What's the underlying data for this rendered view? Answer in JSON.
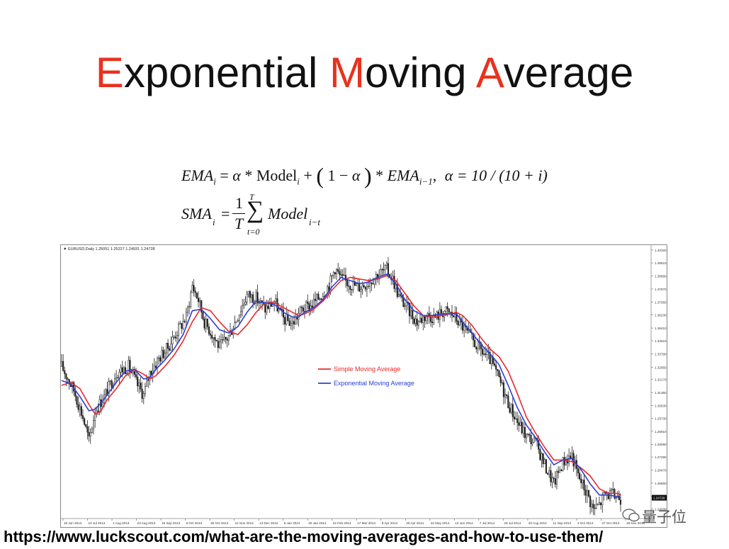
{
  "slide": {
    "title_parts": [
      {
        "text": "E",
        "accent": true
      },
      {
        "text": "xponential ",
        "accent": false
      },
      {
        "text": "M",
        "accent": true
      },
      {
        "text": "oving ",
        "accent": false
      },
      {
        "text": "A",
        "accent": true
      },
      {
        "text": "verage",
        "accent": false
      }
    ],
    "accent_color": "#e8321e",
    "source_url": "https://www.luckscout.com/what-are-the-moving-averages-and-how-to-use-them/",
    "watermark_text": "量子位"
  },
  "formulas": {
    "ema": {
      "lhs": "EMA",
      "lhs_sub": "i",
      "eq": "=",
      "alpha": "α",
      "times": "*",
      "model": "Model",
      "model_sub": "i",
      "plus": "+",
      "one": "1",
      "minus": "−",
      "ema_prev": "EMA",
      "ema_prev_sub": "i−1",
      "comma": ",",
      "alpha_def": "α = 10 / (10 + i)"
    },
    "sma": {
      "lhs": "SMA",
      "lhs_sub": "i",
      "eq": "=",
      "frac_num": "1",
      "frac_den": "T",
      "sum_symbol": "∑",
      "sum_upper": "T",
      "sum_lower": "t=0",
      "model": "Model",
      "model_sub": "i−t"
    }
  },
  "chart_data": {
    "type": "line",
    "instrument_label": "▼ EURUSD,Daily  1.25051 1.25227 1.24931 1.24728",
    "colors": {
      "candles": "#222222",
      "sma": "#e8282b",
      "ema": "#2a3fd6"
    },
    "legend_position": "center",
    "ylim": [
      1.2373,
      1.4032
    ],
    "y_ticks": [
      "1.40320",
      "1.39510",
      "1.38690",
      "1.37870",
      "1.37050",
      "1.36230",
      "1.35410",
      "1.34610",
      "1.33790",
      "1.32950",
      "1.32170",
      "1.31350",
      "1.30530",
      "1.29730",
      "1.28910",
      "1.28090",
      "1.27290",
      "1.26470",
      "1.25650",
      "1.24830",
      "1.24030"
    ],
    "last_price": "1.24728",
    "x_ticks": [
      "18 Jun 2013",
      "10 Jul 2013",
      "1 Aug 2013",
      "23 Aug 2013",
      "16 Sep 2013",
      "8 Oct 2013",
      "30 Oct 2013",
      "21 Nov 2013",
      "13 Dec 2013",
      "8 Jan 2014",
      "30 Jan 2014",
      "24 Feb 2014",
      "17 Mar 2014",
      "8 Apr 2014",
      "30 Apr 2014",
      "22 May 2014",
      "13 Jun 2014",
      "7 Jul 2014",
      "29 Jul 2014",
      "20 Aug 2014",
      "11 Sep 2014",
      "3 Oct 2014",
      "27 Oct 2014",
      "18 Nov 2014"
    ],
    "xlim": [
      0,
      375
    ],
    "price_anchors": [
      [
        0,
        1.33
      ],
      [
        8,
        1.315
      ],
      [
        14,
        1.298
      ],
      [
        18,
        1.283
      ],
      [
        22,
        1.302
      ],
      [
        28,
        1.311
      ],
      [
        36,
        1.326
      ],
      [
        44,
        1.33
      ],
      [
        50,
        1.318
      ],
      [
        54,
        1.312
      ],
      [
        58,
        1.326
      ],
      [
        64,
        1.335
      ],
      [
        70,
        1.342
      ],
      [
        76,
        1.352
      ],
      [
        82,
        1.361
      ],
      [
        86,
        1.381
      ],
      [
        90,
        1.372
      ],
      [
        94,
        1.358
      ],
      [
        98,
        1.352
      ],
      [
        104,
        1.342
      ],
      [
        110,
        1.349
      ],
      [
        116,
        1.362
      ],
      [
        122,
        1.375
      ],
      [
        128,
        1.373
      ],
      [
        134,
        1.366
      ],
      [
        140,
        1.371
      ],
      [
        146,
        1.36
      ],
      [
        152,
        1.357
      ],
      [
        158,
        1.366
      ],
      [
        164,
        1.368
      ],
      [
        170,
        1.374
      ],
      [
        176,
        1.381
      ],
      [
        180,
        1.392
      ],
      [
        184,
        1.385
      ],
      [
        190,
        1.382
      ],
      [
        196,
        1.38
      ],
      [
        202,
        1.383
      ],
      [
        208,
        1.388
      ],
      [
        214,
        1.391
      ],
      [
        218,
        1.385
      ],
      [
        222,
        1.374
      ],
      [
        228,
        1.366
      ],
      [
        234,
        1.358
      ],
      [
        240,
        1.362
      ],
      [
        246,
        1.361
      ],
      [
        252,
        1.365
      ],
      [
        258,
        1.362
      ],
      [
        264,
        1.355
      ],
      [
        270,
        1.347
      ],
      [
        276,
        1.34
      ],
      [
        282,
        1.334
      ],
      [
        288,
        1.322
      ],
      [
        294,
        1.307
      ],
      [
        300,
        1.295
      ],
      [
        306,
        1.286
      ],
      [
        312,
        1.282
      ],
      [
        318,
        1.268
      ],
      [
        324,
        1.256
      ],
      [
        330,
        1.27
      ],
      [
        336,
        1.274
      ],
      [
        340,
        1.261
      ],
      [
        346,
        1.25
      ],
      [
        350,
        1.24
      ],
      [
        354,
        1.243
      ],
      [
        358,
        1.25
      ],
      [
        362,
        1.249
      ],
      [
        366,
        1.248
      ],
      [
        368,
        1.247
      ]
    ],
    "series": [
      {
        "name": "Simple Moving Average",
        "color": "#e8282b",
        "values": [
          [
            0,
            1.318
          ],
          [
            6,
            1.32
          ],
          [
            12,
            1.316
          ],
          [
            18,
            1.306
          ],
          [
            22,
            1.3
          ],
          [
            26,
            1.302
          ],
          [
            30,
            1.309
          ],
          [
            36,
            1.316
          ],
          [
            42,
            1.324
          ],
          [
            48,
            1.328
          ],
          [
            54,
            1.325
          ],
          [
            58,
            1.322
          ],
          [
            62,
            1.324
          ],
          [
            68,
            1.33
          ],
          [
            74,
            1.337
          ],
          [
            80,
            1.346
          ],
          [
            86,
            1.358
          ],
          [
            92,
            1.367
          ],
          [
            98,
            1.365
          ],
          [
            104,
            1.358
          ],
          [
            110,
            1.352
          ],
          [
            116,
            1.35
          ],
          [
            122,
            1.356
          ],
          [
            128,
            1.364
          ],
          [
            134,
            1.37
          ],
          [
            140,
            1.37
          ],
          [
            146,
            1.367
          ],
          [
            152,
            1.364
          ],
          [
            156,
            1.362
          ],
          [
            160,
            1.363
          ],
          [
            166,
            1.366
          ],
          [
            172,
            1.371
          ],
          [
            178,
            1.378
          ],
          [
            184,
            1.384
          ],
          [
            190,
            1.386
          ],
          [
            196,
            1.385
          ],
          [
            202,
            1.384
          ],
          [
            208,
            1.385
          ],
          [
            214,
            1.387
          ],
          [
            220,
            1.384
          ],
          [
            226,
            1.376
          ],
          [
            232,
            1.368
          ],
          [
            238,
            1.362
          ],
          [
            244,
            1.361
          ],
          [
            250,
            1.362
          ],
          [
            256,
            1.363
          ],
          [
            260,
            1.364
          ],
          [
            264,
            1.362
          ],
          [
            270,
            1.356
          ],
          [
            276,
            1.348
          ],
          [
            282,
            1.341
          ],
          [
            288,
            1.336
          ],
          [
            294,
            1.327
          ],
          [
            300,
            1.313
          ],
          [
            306,
            1.298
          ],
          [
            312,
            1.288
          ],
          [
            318,
            1.279
          ],
          [
            324,
            1.271
          ],
          [
            330,
            1.271
          ],
          [
            336,
            1.27
          ],
          [
            342,
            1.266
          ],
          [
            348,
            1.261
          ],
          [
            354,
            1.253
          ],
          [
            360,
            1.25
          ],
          [
            366,
            1.25
          ],
          [
            368,
            1.249
          ]
        ]
      },
      {
        "name": "Exponential Moving Average",
        "color": "#2a3fd6",
        "values": [
          [
            0,
            1.321
          ],
          [
            6,
            1.319
          ],
          [
            12,
            1.311
          ],
          [
            18,
            1.302
          ],
          [
            22,
            1.303
          ],
          [
            26,
            1.307
          ],
          [
            30,
            1.312
          ],
          [
            36,
            1.32
          ],
          [
            42,
            1.327
          ],
          [
            48,
            1.328
          ],
          [
            54,
            1.322
          ],
          [
            58,
            1.323
          ],
          [
            62,
            1.328
          ],
          [
            68,
            1.334
          ],
          [
            74,
            1.341
          ],
          [
            80,
            1.35
          ],
          [
            86,
            1.365
          ],
          [
            92,
            1.366
          ],
          [
            98,
            1.36
          ],
          [
            104,
            1.353
          ],
          [
            110,
            1.351
          ],
          [
            116,
            1.355
          ],
          [
            122,
            1.364
          ],
          [
            128,
            1.371
          ],
          [
            134,
            1.37
          ],
          [
            140,
            1.369
          ],
          [
            146,
            1.364
          ],
          [
            152,
            1.361
          ],
          [
            156,
            1.361
          ],
          [
            160,
            1.364
          ],
          [
            166,
            1.367
          ],
          [
            172,
            1.372
          ],
          [
            178,
            1.38
          ],
          [
            184,
            1.386
          ],
          [
            190,
            1.384
          ],
          [
            196,
            1.382
          ],
          [
            202,
            1.383
          ],
          [
            208,
            1.386
          ],
          [
            214,
            1.388
          ],
          [
            220,
            1.382
          ],
          [
            226,
            1.372
          ],
          [
            232,
            1.365
          ],
          [
            238,
            1.362
          ],
          [
            244,
            1.362
          ],
          [
            250,
            1.363
          ],
          [
            256,
            1.363
          ],
          [
            260,
            1.363
          ],
          [
            264,
            1.358
          ],
          [
            270,
            1.351
          ],
          [
            276,
            1.344
          ],
          [
            282,
            1.338
          ],
          [
            288,
            1.331
          ],
          [
            294,
            1.318
          ],
          [
            300,
            1.304
          ],
          [
            306,
            1.293
          ],
          [
            312,
            1.285
          ],
          [
            318,
            1.276
          ],
          [
            324,
            1.268
          ],
          [
            330,
            1.271
          ],
          [
            336,
            1.272
          ],
          [
            342,
            1.265
          ],
          [
            348,
            1.256
          ],
          [
            354,
            1.249
          ],
          [
            360,
            1.249
          ],
          [
            366,
            1.248
          ],
          [
            368,
            1.247
          ]
        ]
      }
    ]
  }
}
